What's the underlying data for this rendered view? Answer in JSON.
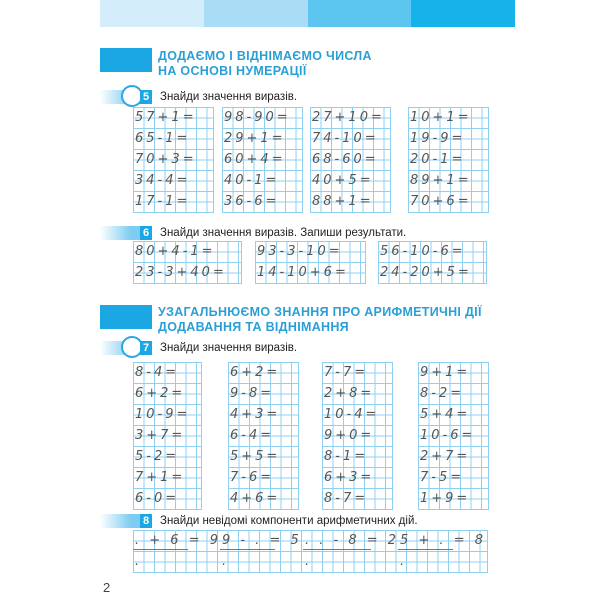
{
  "top_colors": [
    "#d3edfb",
    "#a9dcf5",
    "#5dc6f0",
    "#16b3ea"
  ],
  "heading1": {
    "line1": "ДОДАЄМО І ВІДНІМАЄМО ЧИСЛА",
    "line2": "НА ОСНОВІ НУМЕРАЦІЇ"
  },
  "heading2": {
    "line1": "УЗАГАЛЬНЮЄМО ЗНАННЯ ПРО АРИФМЕТИЧНІ ДІЇ",
    "line2": "ДОДАВАННЯ ТА ВІДНІМАННЯ"
  },
  "tasks": [
    {
      "number": "5",
      "text": "Знайди значення виразів.",
      "columns": [
        [
          "57+1=",
          "65-1=",
          "70+3=",
          "34-4=",
          "17-1="
        ],
        [
          "98-90=",
          "29+1=",
          "60+4=",
          "40-1=",
          "36-6="
        ],
        [
          "27+10=",
          "74-10=",
          "68-60=",
          "40+5=",
          "88+1="
        ],
        [
          "10+1=",
          "19-9=",
          "20-1=",
          "89+1=",
          "70+6="
        ]
      ]
    },
    {
      "number": "6",
      "text": "Знайди значення виразів. Запиши результати.",
      "columns": [
        [
          "80+4-1=",
          "23-3+40="
        ],
        [
          "93-3-10=",
          "14-10+6="
        ],
        [
          "56-10-6=",
          "24-20+5="
        ]
      ]
    },
    {
      "number": "7",
      "text": "Знайди значення виразів.",
      "columns": [
        [
          "8-4=",
          "6+2=",
          "10-9=",
          "3+7=",
          "5-2=",
          "7+1=",
          "6-0="
        ],
        [
          "6+2=",
          "9-8=",
          "4+3=",
          "6-4=",
          "5+5=",
          "7-6=",
          "4+6="
        ],
        [
          "7-7=",
          "2+8=",
          "10-4=",
          "9+0=",
          "8-1=",
          "6+3=",
          "8-7="
        ],
        [
          "9+1=",
          "8-2=",
          "5+4=",
          "10-6=",
          "2+7=",
          "7-5=",
          "1+9="
        ]
      ]
    },
    {
      "number": "8",
      "text": "Знайди невідомі компоненти арифметичних дій.",
      "columns": [
        [
          ". + 6 = 9",
          "."
        ],
        [
          "9 - . = 5",
          "."
        ],
        [
          ". . - 8 = 2",
          "."
        ],
        [
          "5 + . = 8",
          "."
        ]
      ]
    }
  ],
  "page_number": "2"
}
